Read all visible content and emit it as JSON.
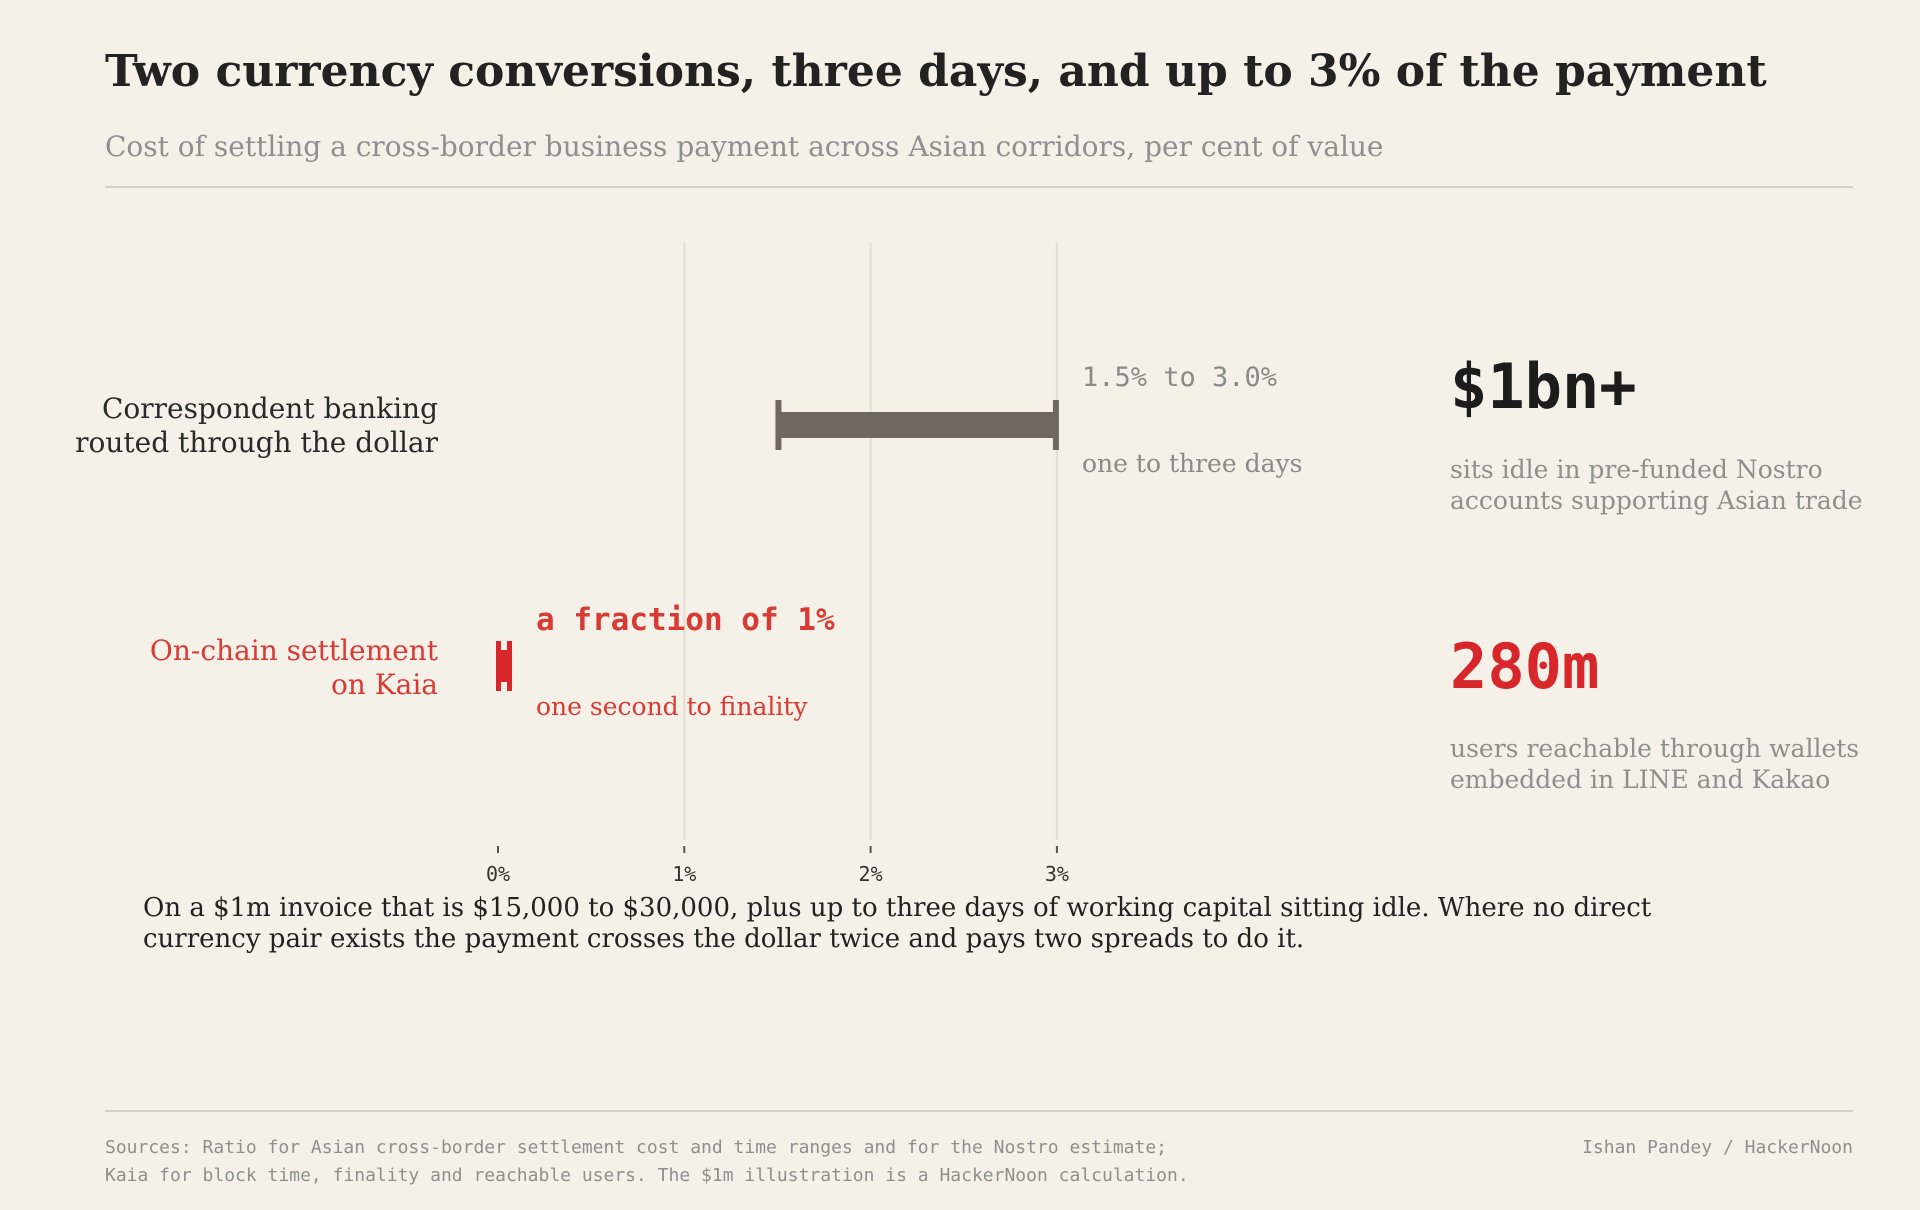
{
  "title": "Two currency conversions, three days, and up to 3% of the payment",
  "subtitle": "Cost of settling a cross-border business payment across Asian corridors, per cent of value",
  "chart_data": {
    "type": "range",
    "x_ticks": [
      0,
      1,
      2,
      3
    ],
    "x_tick_labels": [
      "0%",
      "1%",
      "2%",
      "3%"
    ],
    "xlim": [
      0,
      3
    ],
    "grid": "vertical",
    "rows": [
      {
        "label_lines": [
          "Correspondent banking",
          "routed through the dollar"
        ],
        "low": 1.5,
        "high": 3.0,
        "range_label": "1.5% to 3.0%",
        "time_label": "one to three days",
        "color": "#6f6761"
      },
      {
        "label_lines": [
          "On-chain settlement",
          "on Kaia"
        ],
        "low": 0,
        "high": 0.05,
        "range_label": "a fraction of 1%",
        "time_label": "one second to finality",
        "color": "#d8272b"
      }
    ]
  },
  "stats": [
    {
      "value": "$1bn+",
      "description": "sits idle in pre-funded Nostro accounts supporting Asian trade",
      "color": "#1c1c1c"
    },
    {
      "value": "280m",
      "description": "users reachable through wallets embedded in LINE and Kakao",
      "color": "#d8272b"
    }
  ],
  "note": "On a $1m invoice that is $15,000 to $30,000, plus up to three days of working capital sitting idle. Where no direct currency pair exists the payment crosses the dollar twice and pays two spreads to do it.",
  "sources_lines": [
    "Sources: Ratio for Asian cross-border settlement cost and time ranges and for the Nostro estimate;",
    "Kaia for block time, finality and reachable users. The $1m illustration is a HackerNoon calculation."
  ],
  "credit": "Ishan Pandey / HackerNoon"
}
